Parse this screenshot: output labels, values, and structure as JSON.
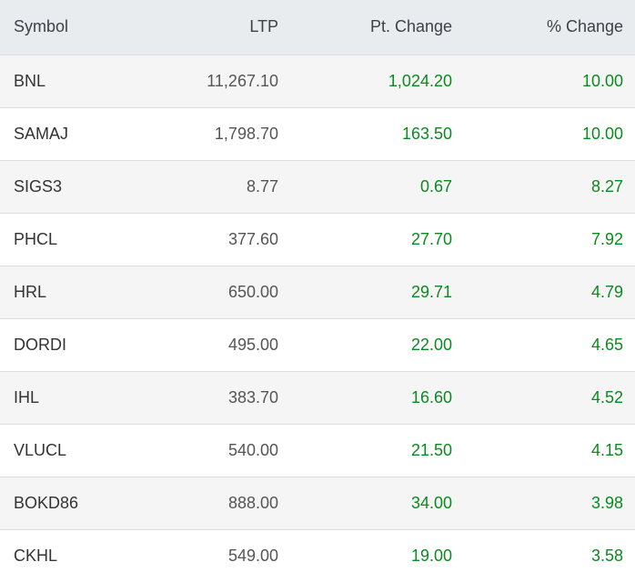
{
  "table": {
    "headers": {
      "symbol": "Symbol",
      "ltp": "LTP",
      "pt_change": "Pt. Change",
      "pct_change": "% Change"
    },
    "rows": [
      {
        "symbol": "BNL",
        "ltp": "11,267.10",
        "pt_change": "1,024.20",
        "pct_change": "10.00"
      },
      {
        "symbol": "SAMAJ",
        "ltp": "1,798.70",
        "pt_change": "163.50",
        "pct_change": "10.00"
      },
      {
        "symbol": "SIGS3",
        "ltp": "8.77",
        "pt_change": "0.67",
        "pct_change": "8.27"
      },
      {
        "symbol": "PHCL",
        "ltp": "377.60",
        "pt_change": "27.70",
        "pct_change": "7.92"
      },
      {
        "symbol": "HRL",
        "ltp": "650.00",
        "pt_change": "29.71",
        "pct_change": "4.79"
      },
      {
        "symbol": "DORDI",
        "ltp": "495.00",
        "pt_change": "22.00",
        "pct_change": "4.65"
      },
      {
        "symbol": "IHL",
        "ltp": "383.70",
        "pt_change": "16.60",
        "pct_change": "4.52"
      },
      {
        "symbol": "VLUCL",
        "ltp": "540.00",
        "pt_change": "21.50",
        "pct_change": "4.15"
      },
      {
        "symbol": "BOKD86",
        "ltp": "888.00",
        "pt_change": "34.00",
        "pct_change": "3.98"
      },
      {
        "symbol": "CKHL",
        "ltp": "549.00",
        "pt_change": "19.00",
        "pct_change": "3.58"
      }
    ]
  },
  "colors": {
    "gain": "#0a8a1e",
    "header_bg": "#e9ecef",
    "row_alt_bg": "#f5f5f5"
  }
}
